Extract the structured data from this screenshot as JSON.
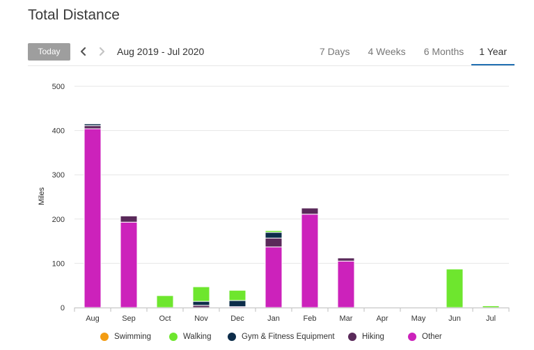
{
  "header": {
    "title": "Total Distance"
  },
  "toolbar": {
    "today_label": "Today",
    "date_range": "Aug 2019 - Jul 2020",
    "tabs": [
      {
        "label": "7 Days",
        "active": false
      },
      {
        "label": "4 Weeks",
        "active": false
      },
      {
        "label": "6 Months",
        "active": false
      },
      {
        "label": "1 Year",
        "active": true
      }
    ],
    "prev_icon": "chevron-left-icon",
    "next_icon": "chevron-right-icon"
  },
  "chart_data": {
    "type": "bar",
    "stacked": true,
    "ylabel": "Miles",
    "xlabel": "",
    "ylim": [
      0,
      500
    ],
    "yticks": [
      0,
      100,
      200,
      300,
      400,
      500
    ],
    "grid": true,
    "legend_position": "bottom",
    "categories": [
      "Aug",
      "Sep",
      "Oct",
      "Nov",
      "Dec",
      "Jan",
      "Feb",
      "Mar",
      "Apr",
      "May",
      "Jun",
      "Jul"
    ],
    "series": [
      {
        "name": "Swimming",
        "color": "#f39c12",
        "values": [
          0,
          0,
          0,
          0,
          0,
          0,
          0,
          0,
          0,
          0,
          0,
          0
        ]
      },
      {
        "name": "Walking",
        "color": "#6ee62e",
        "values": [
          0,
          0,
          27,
          33,
          23,
          4,
          0,
          0,
          0,
          0,
          87,
          4
        ]
      },
      {
        "name": "Gym & Fitness Equipment",
        "color": "#0d2d4a",
        "values": [
          4,
          0,
          0,
          9,
          14,
          13,
          1,
          0,
          0,
          0,
          0,
          0
        ]
      },
      {
        "name": "Hiking",
        "color": "#5a2a5a",
        "values": [
          7,
          14,
          0,
          5,
          0,
          20,
          14,
          7,
          0,
          0,
          0,
          0
        ]
      },
      {
        "name": "Other",
        "color": "#cc22bb",
        "values": [
          404,
          193,
          0,
          0,
          2,
          137,
          211,
          105,
          0,
          0,
          0,
          0
        ]
      }
    ]
  }
}
